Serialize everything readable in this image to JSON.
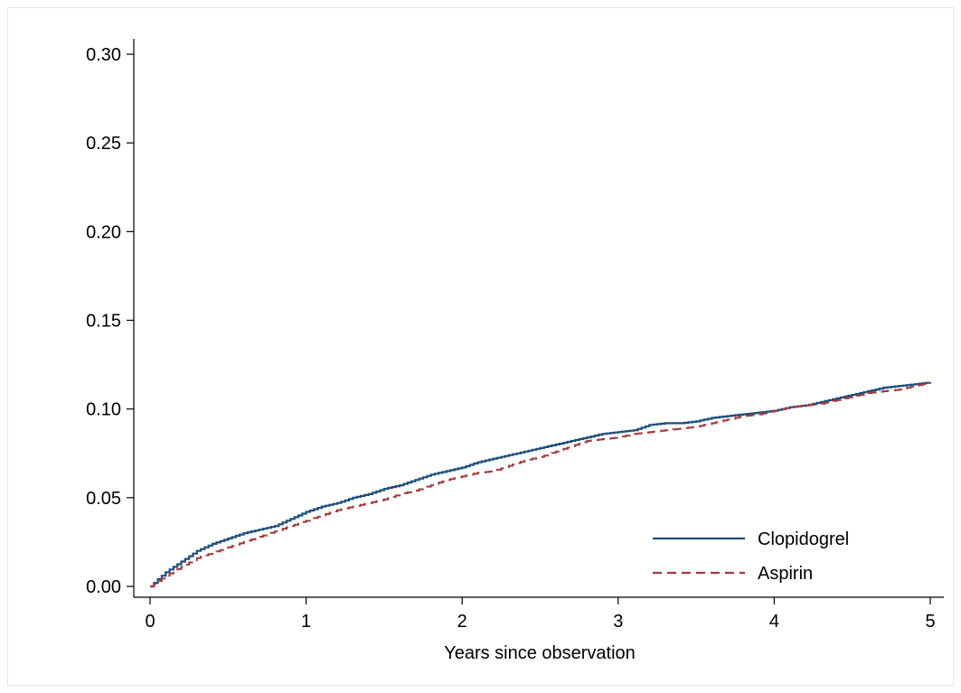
{
  "chart_data": {
    "type": "line",
    "title": "",
    "xlabel": "Years since observation",
    "ylabel": "",
    "xlim": [
      0,
      5
    ],
    "ylim": [
      0,
      0.3
    ],
    "x_ticks": [
      {
        "value": 0,
        "label": "0"
      },
      {
        "value": 1,
        "label": "1"
      },
      {
        "value": 2,
        "label": "2"
      },
      {
        "value": 3,
        "label": "3"
      },
      {
        "value": 4,
        "label": "4"
      },
      {
        "value": 5,
        "label": "5"
      }
    ],
    "y_ticks": [
      {
        "value": 0.0,
        "label": "0.00"
      },
      {
        "value": 0.05,
        "label": "0.05"
      },
      {
        "value": 0.1,
        "label": "0.10"
      },
      {
        "value": 0.15,
        "label": "0.15"
      },
      {
        "value": 0.2,
        "label": "0.20"
      },
      {
        "value": 0.25,
        "label": "0.25"
      },
      {
        "value": 0.3,
        "label": "0.30"
      }
    ],
    "grid": false,
    "legend_position": "bottom-right",
    "series": [
      {
        "name": "Clopidogrel",
        "color": "#1f4e79",
        "style": "solid",
        "x": [
          0,
          0.1,
          0.2,
          0.3,
          0.4,
          0.5,
          0.6,
          0.7,
          0.8,
          0.9,
          1.0,
          1.1,
          1.2,
          1.3,
          1.4,
          1.5,
          1.6,
          1.7,
          1.8,
          1.9,
          2.0,
          2.1,
          2.2,
          2.3,
          2.4,
          2.5,
          2.6,
          2.7,
          2.8,
          2.9,
          3.0,
          3.1,
          3.2,
          3.3,
          3.4,
          3.5,
          3.6,
          3.7,
          3.8,
          3.9,
          4.0,
          4.1,
          4.2,
          4.3,
          4.4,
          4.5,
          4.6,
          4.7,
          4.8,
          4.9,
          5.0
        ],
        "y": [
          0.0,
          0.008,
          0.014,
          0.02,
          0.024,
          0.027,
          0.03,
          0.032,
          0.034,
          0.038,
          0.042,
          0.045,
          0.047,
          0.05,
          0.052,
          0.055,
          0.057,
          0.06,
          0.063,
          0.065,
          0.067,
          0.07,
          0.072,
          0.074,
          0.076,
          0.078,
          0.08,
          0.082,
          0.084,
          0.086,
          0.087,
          0.088,
          0.091,
          0.092,
          0.092,
          0.093,
          0.095,
          0.096,
          0.097,
          0.098,
          0.099,
          0.101,
          0.102,
          0.104,
          0.106,
          0.108,
          0.11,
          0.112,
          0.113,
          0.114,
          0.115
        ]
      },
      {
        "name": "Aspirin",
        "color": "#a03a3f",
        "style": "dashed",
        "x": [
          0,
          0.1,
          0.2,
          0.3,
          0.4,
          0.5,
          0.6,
          0.7,
          0.8,
          0.9,
          1.0,
          1.1,
          1.2,
          1.3,
          1.4,
          1.5,
          1.6,
          1.7,
          1.8,
          1.9,
          2.0,
          2.1,
          2.2,
          2.3,
          2.4,
          2.5,
          2.6,
          2.7,
          2.8,
          2.9,
          3.0,
          3.1,
          3.2,
          3.3,
          3.4,
          3.5,
          3.6,
          3.7,
          3.8,
          3.9,
          4.0,
          4.1,
          4.2,
          4.3,
          4.4,
          4.5,
          4.6,
          4.7,
          4.8,
          4.9,
          5.0
        ],
        "y": [
          0.0,
          0.006,
          0.011,
          0.016,
          0.019,
          0.022,
          0.025,
          0.028,
          0.031,
          0.034,
          0.037,
          0.04,
          0.043,
          0.045,
          0.047,
          0.049,
          0.052,
          0.054,
          0.057,
          0.06,
          0.062,
          0.064,
          0.065,
          0.068,
          0.071,
          0.073,
          0.076,
          0.079,
          0.082,
          0.083,
          0.084,
          0.086,
          0.087,
          0.088,
          0.089,
          0.09,
          0.092,
          0.094,
          0.096,
          0.097,
          0.099,
          0.101,
          0.102,
          0.103,
          0.105,
          0.107,
          0.109,
          0.11,
          0.111,
          0.113,
          0.115
        ]
      }
    ]
  }
}
